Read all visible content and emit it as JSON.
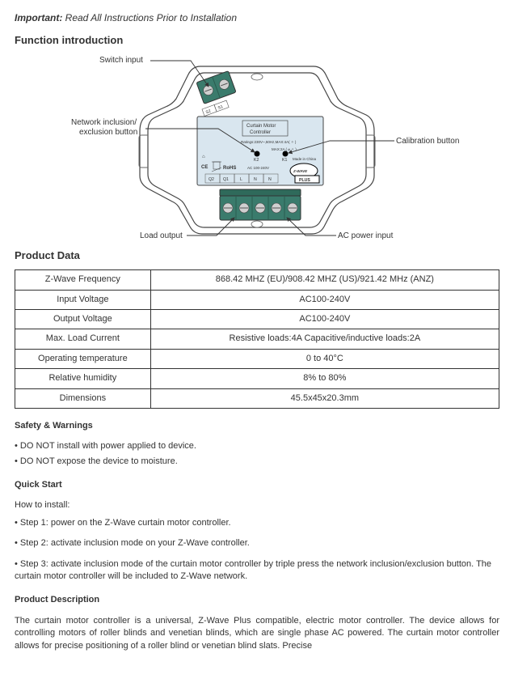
{
  "important": {
    "label": "Important:",
    "text": "Read All Instructions Prior to Installation"
  },
  "headings": {
    "function": "Function introduction",
    "productData": "Product Data",
    "safety": "Safety & Warnings",
    "quickStart": "Quick Start",
    "productDesc": "Product Description"
  },
  "diagram": {
    "labels": {
      "switchInput": "Switch input",
      "networkBtn": "Network inclusion/\nexclusion button",
      "loadOutput": "Load output",
      "acPower": "AC power input",
      "calibration": "Calibration button"
    },
    "plateTitle1": "Curtain Motor",
    "plateTitle2": "Controller",
    "ratings": "Ratings:230V~,50Hz,MAX:4A( ✧ )",
    "max2a": "MAX:2A ( ⌀ ✧ )",
    "k2": "K2",
    "k1": "K1",
    "madeIn": "Made in China",
    "rohs": "RoHS",
    "acRange": "AC 100-240V",
    "terminals": [
      "Q2",
      "Q1",
      "L",
      "N",
      "N"
    ],
    "sTerminals": [
      "S2",
      "S1"
    ],
    "ce": "CE",
    "house": "⌂",
    "zwave": "Z-WAVE",
    "plus": "PLUS",
    "colors": {
      "plate": "#D9E6EF",
      "terminal": "#3A7B6C",
      "body": "#ffffff",
      "stroke": "#444444"
    }
  },
  "specTable": [
    {
      "label": "Z-Wave Frequency",
      "value": "868.42 MHZ (EU)/908.42 MHZ (US)/921.42 MHz (ANZ)"
    },
    {
      "label": "Input Voltage",
      "value": "AC100-240V"
    },
    {
      "label": "Output Voltage",
      "value": "AC100-240V"
    },
    {
      "label": "Max. Load Current",
      "value": "Resistive loads:4A Capacitive/inductive loads:2A"
    },
    {
      "label": "Operating temperature",
      "value": "0 to 40°C"
    },
    {
      "label": "Relative humidity",
      "value": "8% to 80%"
    },
    {
      "label": "Dimensions",
      "value": "45.5x45x20.3mm"
    }
  ],
  "safetyList": [
    "DO NOT install with power applied to device.",
    "DO NOT expose the device to moisture."
  ],
  "quickStart": {
    "intro": "How to install:",
    "steps": [
      "Step 1: power on the Z-Wave curtain motor controller.",
      "Step 2: activate inclusion mode on your Z-Wave controller.",
      "Step 3: activate inclusion mode of the curtain motor controller by triple press the network inclusion/exclusion button. The curtain motor controller will be included to Z-Wave network."
    ]
  },
  "productDescription": "The curtain motor controller is a universal, Z-Wave Plus compatible, electric motor controller. The device allows for controlling motors of roller blinds and venetian blinds, which are single phase AC powered. The curtain motor controller allows for precise positioning of a roller blind or venetian blind slats. Precise"
}
